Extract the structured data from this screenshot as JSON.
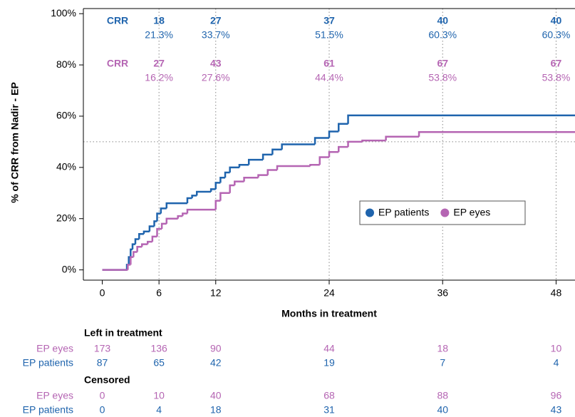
{
  "chart_data": {
    "type": "step",
    "x_label": "Months in treatment",
    "y_label": "% of CRR from Nadir - EP",
    "xlim": [
      -2,
      50
    ],
    "ylim": [
      -4,
      102
    ],
    "xticks": [
      0,
      6,
      12,
      24,
      36,
      48
    ],
    "yticks": [
      {
        "value": 0,
        "label": "0%"
      },
      {
        "value": 20,
        "label": "20%"
      },
      {
        "value": 40,
        "label": "40%"
      },
      {
        "value": 60,
        "label": "60%"
      },
      {
        "value": 80,
        "label": "80%"
      },
      {
        "value": 100,
        "label": "100%"
      }
    ],
    "vlines": [
      6,
      12,
      24,
      36,
      48
    ],
    "hline": 50,
    "legend": "right",
    "series": [
      {
        "name": "EP patients",
        "color": "#1f64ad",
        "x": [
          0,
          2.6,
          2.8,
          3.0,
          3.2,
          3.5,
          3.9,
          4.4,
          5.0,
          5.5,
          5.8,
          6.2,
          6.8,
          9.0,
          9.5,
          10.0,
          11.5,
          12.0,
          12.5,
          13.0,
          13.5,
          14.5,
          15.5,
          17.0,
          18.0,
          19.0,
          22.5,
          24.0,
          25.0,
          26.0
        ],
        "values": [
          0,
          2,
          5,
          8,
          10,
          12,
          14,
          15,
          17,
          19,
          22,
          24,
          26,
          28,
          29,
          30.5,
          31.5,
          34,
          36,
          38,
          40,
          41,
          43,
          45,
          47,
          49,
          51.5,
          54,
          57,
          60.3
        ]
      },
      {
        "name": "EP eyes",
        "color": "#b565b3",
        "x": [
          0,
          2.7,
          3.0,
          3.3,
          3.7,
          4.2,
          4.8,
          5.3,
          5.8,
          6.3,
          6.8,
          8.0,
          8.5,
          9.0,
          12.0,
          12.5,
          13.5,
          14.0,
          15.0,
          16.5,
          17.5,
          18.5,
          22.0,
          23.0,
          24.0,
          25.0,
          26.0,
          27.5,
          30.0,
          33.5
        ],
        "values": [
          0,
          2,
          5,
          7,
          9,
          10,
          11,
          13,
          16,
          18,
          20,
          21,
          22,
          23.5,
          27,
          30,
          33,
          34.5,
          36,
          37,
          39,
          40.5,
          41,
          44,
          46,
          48,
          50,
          50.5,
          52,
          53.8
        ]
      }
    ],
    "crr_rows": [
      {
        "label": "CRR",
        "color": "#1f64ad",
        "x": [
          6,
          12,
          24,
          36,
          48
        ],
        "counts": [
          18,
          27,
          37,
          40,
          40
        ],
        "percents": [
          "21.3%",
          "33.7%",
          "51.5%",
          "60.3%",
          "60.3%"
        ]
      },
      {
        "label": "CRR",
        "color": "#b565b3",
        "x": [
          6,
          12,
          24,
          36,
          48
        ],
        "counts": [
          27,
          43,
          61,
          67,
          67
        ],
        "percents": [
          "16.2%",
          "27.6%",
          "44.4%",
          "53.8%",
          "53.8%"
        ]
      }
    ],
    "risk_table": {
      "x": [
        0,
        6,
        12,
        24,
        36,
        48
      ],
      "sections": [
        {
          "title": "Left in treatment",
          "rows": [
            {
              "name": "EP eyes",
              "color": "#b565b3",
              "values": [
                173,
                136,
                90,
                44,
                18,
                10
              ]
            },
            {
              "name": "EP patients",
              "color": "#1f64ad",
              "values": [
                87,
                65,
                42,
                19,
                7,
                4
              ]
            }
          ]
        },
        {
          "title": "Censored",
          "rows": [
            {
              "name": "EP eyes",
              "color": "#b565b3",
              "values": [
                0,
                10,
                40,
                68,
                88,
                96
              ]
            },
            {
              "name": "EP patients",
              "color": "#1f64ad",
              "values": [
                0,
                4,
                18,
                31,
                40,
                43
              ]
            }
          ]
        }
      ]
    }
  }
}
